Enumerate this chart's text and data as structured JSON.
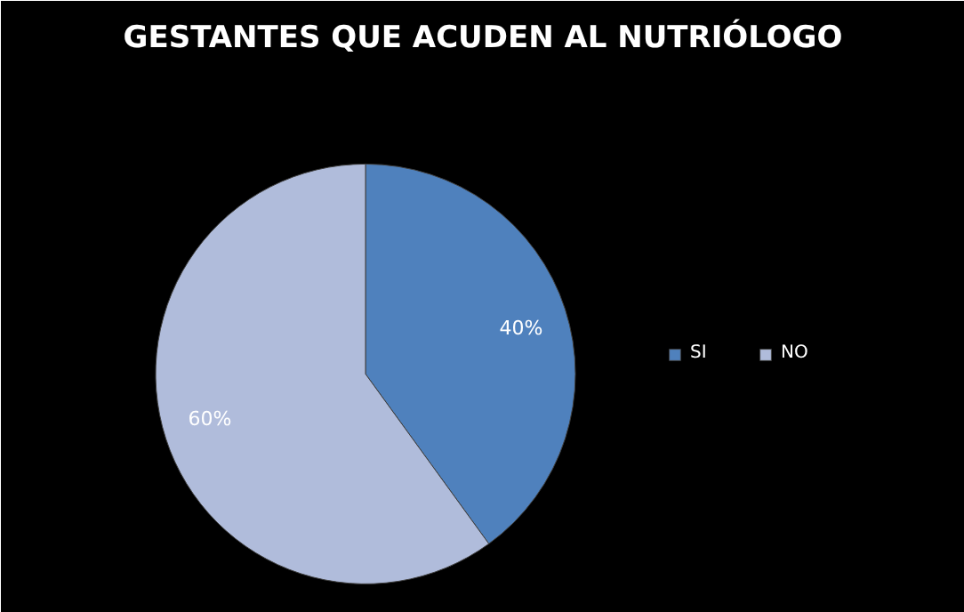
{
  "chart_data": {
    "type": "pie",
    "title": "GESTANTES QUE ACUDEN AL NUTRIÓLOGO",
    "categories": [
      "SI",
      "NO"
    ],
    "values": [
      40,
      60
    ],
    "colors": [
      "#4f81bd",
      "#b0bcdb"
    ],
    "value_labels": [
      "40%",
      "60%"
    ],
    "legend": "right"
  }
}
